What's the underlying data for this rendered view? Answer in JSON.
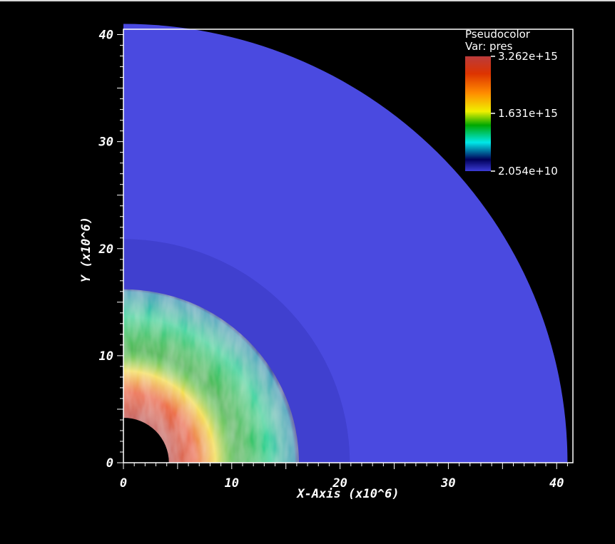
{
  "chart_data": {
    "type": "heatmap",
    "x_label": "X-Axis (x10^6)",
    "y_label": "Y (x10^6)",
    "xlim": [
      0,
      41.5
    ],
    "ylim": [
      0,
      40.5
    ],
    "x_ticks": [
      {
        "value": 0,
        "label": "0"
      },
      {
        "value": 10,
        "label": "10"
      },
      {
        "value": 20,
        "label": "20"
      },
      {
        "value": 30,
        "label": "30"
      },
      {
        "value": 40,
        "label": "40"
      }
    ],
    "y_ticks": [
      {
        "value": 0,
        "label": "0"
      },
      {
        "value": 10,
        "label": "10"
      },
      {
        "value": 20,
        "label": "20"
      },
      {
        "value": 30,
        "label": "30"
      },
      {
        "value": 40,
        "label": "40"
      }
    ],
    "legend": {
      "title": "Pseudocolor",
      "variable": "Var: pres",
      "max_label": "3.262e+15",
      "mid_label": "1.631e+15",
      "min_label": "2.054e+10",
      "max": 3262000000000000.0,
      "mid": 1631000000000000.0,
      "min": 20540000000.0
    },
    "domain": {
      "shape": "quarter-annulus",
      "inner_radius": 4.2,
      "outer_radius": 41
    },
    "radial_profile": [
      {
        "r": 4.2,
        "level": 0.97
      },
      {
        "r": 6.5,
        "level": 0.78
      },
      {
        "r": 8.5,
        "level": 0.55
      },
      {
        "r": 10.5,
        "level": 0.38
      },
      {
        "r": 13.5,
        "level": 0.3
      },
      {
        "r": 15.8,
        "level": 0.2
      },
      {
        "r": 16.2,
        "level": 0.06
      },
      {
        "r": 20.8,
        "level": 0.03
      },
      {
        "r": 41,
        "level": 0.0
      }
    ],
    "colors": {
      "background": "#000000",
      "ambient": "#4a4ae0",
      "axis": "#ffffff"
    },
    "colormap": [
      "#3b3bd6",
      "#00005a",
      "#00e8e8",
      "#00a800",
      "#f0f000",
      "#ff8c00",
      "#dd3300",
      "#bb3b3b"
    ]
  }
}
